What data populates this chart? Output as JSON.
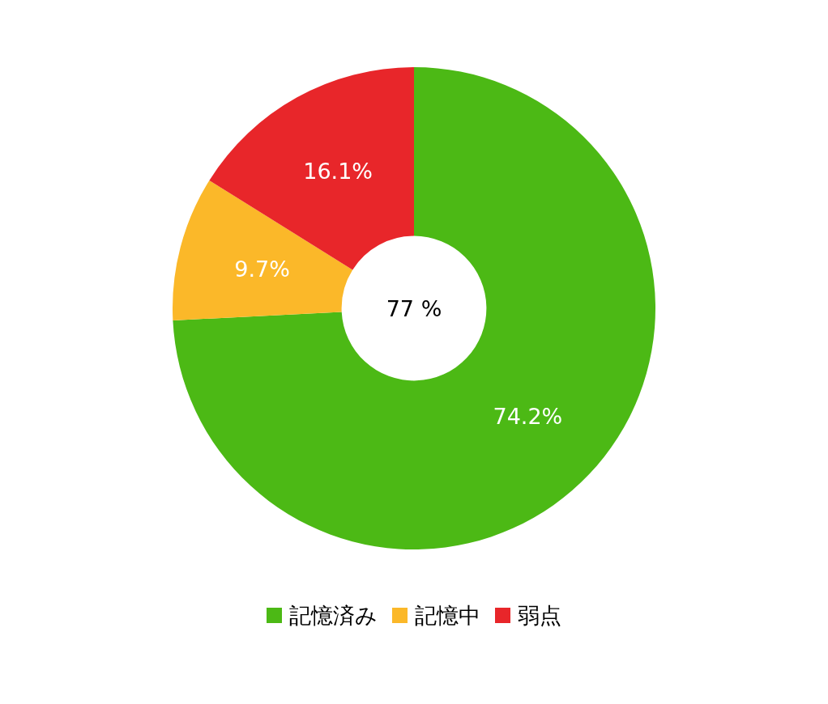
{
  "chart_data": {
    "type": "donut",
    "categories": [
      "記憶済み",
      "記憶中",
      "弱点"
    ],
    "values": [
      74.2,
      9.7,
      16.1
    ],
    "colors": [
      "#4cb915",
      "#fbb829",
      "#e8262a"
    ],
    "value_labels": [
      "74.2%",
      "9.7%",
      "16.1%"
    ],
    "legend": "bottom",
    "annotations": [
      "77 %"
    ]
  }
}
